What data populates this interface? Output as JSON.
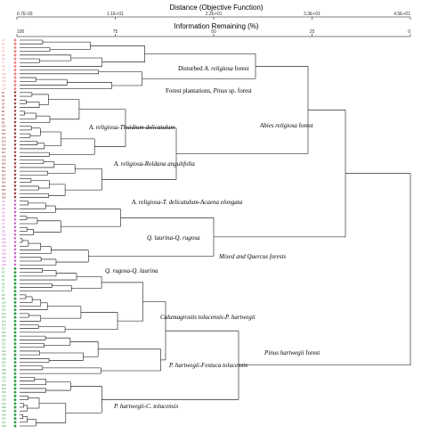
{
  "title": "Distance (Objective Function)",
  "subtitle": "Information Remaining (%)",
  "distance_ticks": [
    "6.7E-03",
    "1.1E+01",
    "2.2E+01",
    "3.3E+01",
    "4.5E+01"
  ],
  "info_ticks": [
    "100",
    "75",
    "50",
    "25",
    "0"
  ],
  "groups": [
    {
      "name": "A",
      "count": 14,
      "color": "#f08080",
      "marker": "circle"
    },
    {
      "name": "B",
      "count": 29,
      "color": "#8b1a1a",
      "marker": "triangle"
    },
    {
      "name": "C",
      "count": 18,
      "color": "#c040c0",
      "marker": "triangle"
    },
    {
      "name": "D",
      "count": 43,
      "color": "#2ea043",
      "marker": "circle"
    }
  ],
  "clade_labels": [
    {
      "parts": [
        {
          "t": "Disturbed "
        },
        {
          "t": "A. religiosa",
          "i": true
        },
        {
          "t": " forest"
        }
      ]
    },
    {
      "parts": [
        {
          "t": "Forest plantations, "
        },
        {
          "t": "Pinus",
          "i": true
        },
        {
          "t": " sp. forest"
        }
      ]
    },
    {
      "parts": [
        {
          "t": "Abies religiosa",
          "i": true
        },
        {
          "t": " forest"
        }
      ]
    },
    {
      "parts": [
        {
          "t": "A. religiosa-Thuidium delicatulum",
          "i": true
        }
      ]
    },
    {
      "parts": [
        {
          "t": "A. religiosa-Roldana angulifolia",
          "i": true
        }
      ]
    },
    {
      "parts": [
        {
          "t": "A. religiosa-T. delicatulum-Acaena elongata",
          "i": true
        }
      ]
    },
    {
      "parts": [
        {
          "t": "Q. laurina-Q. rugosa",
          "i": true
        }
      ]
    },
    {
      "parts": [
        {
          "t": "Mixed and ",
          "i": true
        },
        {
          "t": "Quercus",
          "i": true
        },
        {
          "t": " forests",
          "i": true
        }
      ]
    },
    {
      "parts": [
        {
          "t": "Q. rugosa-Q. laurina",
          "i": true
        }
      ]
    },
    {
      "parts": [
        {
          "t": "Calamagrostis tolucensis-P. hartwegii",
          "i": true
        }
      ]
    },
    {
      "parts": [
        {
          "t": "Pinus hartwegii",
          "i": true
        },
        {
          "t": " forest"
        }
      ]
    },
    {
      "parts": [
        {
          "t": "P. hartwegii-Festuca tolucensis",
          "i": true
        }
      ]
    },
    {
      "parts": [
        {
          "t": "P. hartwegii-C. tolucensis",
          "i": true
        }
      ]
    }
  ]
}
